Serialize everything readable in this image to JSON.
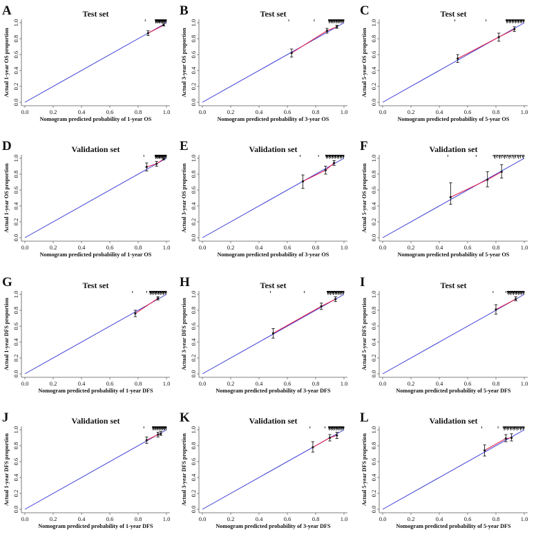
{
  "figure": {
    "axis_ticks": [
      "0.0",
      "0.2",
      "0.4",
      "0.6",
      "0.8",
      "1.0"
    ],
    "colors": {
      "ideal_line": "#3b3bd6",
      "calibration_line": "#e0204f",
      "points": "#1a1a1a",
      "error_bars": "#1a1a1a",
      "axes": "#555555"
    }
  },
  "chart_data": [
    {
      "type": "scatter",
      "panel": "A",
      "title": "Test set",
      "xlabel": "Nomogram predicted probability of 1-year OS",
      "ylabel": "Actual 1-year OS proportion",
      "xlim": [
        0,
        1
      ],
      "ylim": [
        0,
        1
      ],
      "points": [
        {
          "x": 0.87,
          "y": 0.87,
          "lo": 0.84,
          "hi": 0.9
        },
        {
          "x": 0.98,
          "y": 0.97,
          "lo": 0.96,
          "hi": 0.99
        }
      ]
    },
    {
      "type": "scatter",
      "panel": "B",
      "title": "Test set",
      "xlabel": "Nomogram predicted probability of 3-year OS",
      "ylabel": "Actual 3-year OS proportion",
      "xlim": [
        0,
        1
      ],
      "ylim": [
        0,
        1
      ],
      "points": [
        {
          "x": 0.63,
          "y": 0.62,
          "lo": 0.57,
          "hi": 0.67
        },
        {
          "x": 0.88,
          "y": 0.9,
          "lo": 0.87,
          "hi": 0.93
        },
        {
          "x": 0.95,
          "y": 0.95,
          "lo": 0.93,
          "hi": 0.97
        }
      ]
    },
    {
      "type": "scatter",
      "panel": "C",
      "title": "Test set",
      "xlabel": "Nomogram predicted probability of 5-year OS",
      "ylabel": "Actual 5-year OS proportion",
      "xlim": [
        0,
        1
      ],
      "ylim": [
        0,
        1
      ],
      "points": [
        {
          "x": 0.53,
          "y": 0.55,
          "lo": 0.5,
          "hi": 0.6
        },
        {
          "x": 0.82,
          "y": 0.82,
          "lo": 0.77,
          "hi": 0.87
        },
        {
          "x": 0.93,
          "y": 0.92,
          "lo": 0.89,
          "hi": 0.95
        }
      ]
    },
    {
      "type": "scatter",
      "panel": "D",
      "title": "Validation set",
      "xlabel": "Nomogram predicted probability of 1-year OS",
      "ylabel": "Actual 1-year OS proportion",
      "xlim": [
        0,
        1
      ],
      "ylim": [
        0,
        1
      ],
      "points": [
        {
          "x": 0.86,
          "y": 0.89,
          "lo": 0.84,
          "hi": 0.94
        },
        {
          "x": 0.93,
          "y": 0.93,
          "lo": 0.9,
          "hi": 0.96
        },
        {
          "x": 0.98,
          "y": 0.99,
          "lo": 0.98,
          "hi": 1.0
        }
      ]
    },
    {
      "type": "scatter",
      "panel": "E",
      "title": "Validation set",
      "xlabel": "Nomogram predicted probability of 3-year OS",
      "ylabel": "Actual 3-year OS proportion",
      "xlim": [
        0,
        1
      ],
      "ylim": [
        0,
        1
      ],
      "points": [
        {
          "x": 0.71,
          "y": 0.71,
          "lo": 0.62,
          "hi": 0.79
        },
        {
          "x": 0.87,
          "y": 0.85,
          "lo": 0.8,
          "hi": 0.9
        },
        {
          "x": 0.93,
          "y": 0.94,
          "lo": 0.91,
          "hi": 0.97
        }
      ]
    },
    {
      "type": "scatter",
      "panel": "F",
      "title": "Validation set",
      "xlabel": "Nomogram predicted probability of 5-year OS",
      "ylabel": "Actual 5-year OS proportion",
      "xlim": [
        0,
        1
      ],
      "ylim": [
        0,
        1
      ],
      "points": [
        {
          "x": 0.48,
          "y": 0.51,
          "lo": 0.42,
          "hi": 0.69
        },
        {
          "x": 0.74,
          "y": 0.73,
          "lo": 0.64,
          "hi": 0.83
        },
        {
          "x": 0.84,
          "y": 0.83,
          "lo": 0.75,
          "hi": 0.92
        }
      ]
    },
    {
      "type": "scatter",
      "panel": "G",
      "title": "Test set",
      "xlabel": "Nomogram predicted probability of 1-year DFS",
      "ylabel": "Actual 1-year DFS proportion",
      "xlim": [
        0,
        1
      ],
      "ylim": [
        0,
        1
      ],
      "points": [
        {
          "x": 0.78,
          "y": 0.76,
          "lo": 0.72,
          "hi": 0.8
        },
        {
          "x": 0.94,
          "y": 0.95,
          "lo": 0.93,
          "hi": 0.97
        }
      ]
    },
    {
      "type": "scatter",
      "panel": "H",
      "title": "Test set",
      "xlabel": "Nomogram predicted probability of 3-year DFS",
      "ylabel": "Actual 3-year DFS proportion",
      "xlim": [
        0,
        1
      ],
      "ylim": [
        0,
        1
      ],
      "points": [
        {
          "x": 0.5,
          "y": 0.51,
          "lo": 0.45,
          "hi": 0.57
        },
        {
          "x": 0.84,
          "y": 0.85,
          "lo": 0.81,
          "hi": 0.89
        },
        {
          "x": 0.94,
          "y": 0.94,
          "lo": 0.91,
          "hi": 0.97
        }
      ]
    },
    {
      "type": "scatter",
      "panel": "I",
      "title": "Test set",
      "xlabel": "Nomogram predicted probability of 5-year DFS",
      "ylabel": "Actual 5-year DFS proportion",
      "xlim": [
        0,
        1
      ],
      "ylim": [
        0,
        1
      ],
      "points": [
        {
          "x": 0.8,
          "y": 0.81,
          "lo": 0.75,
          "hi": 0.87
        },
        {
          "x": 0.94,
          "y": 0.94,
          "lo": 0.92,
          "hi": 0.97
        }
      ]
    },
    {
      "type": "scatter",
      "panel": "J",
      "title": "Validation set",
      "xlabel": "Nomogram predicted probability of 1-year DFS",
      "ylabel": "Actual 1-year DFS proportion",
      "xlim": [
        0,
        1
      ],
      "ylim": [
        0,
        1
      ],
      "points": [
        {
          "x": 0.86,
          "y": 0.87,
          "lo": 0.83,
          "hi": 0.91
        },
        {
          "x": 0.94,
          "y": 0.94,
          "lo": 0.91,
          "hi": 0.97
        },
        {
          "x": 0.96,
          "y": 0.95,
          "lo": 0.93,
          "hi": 0.98
        }
      ]
    },
    {
      "type": "scatter",
      "panel": "K",
      "title": "Validation set",
      "xlabel": "Nomogram predicted probability of 3-year DFS",
      "ylabel": "Actual 3-year DFS proportion",
      "xlim": [
        0,
        1
      ],
      "ylim": [
        0,
        1
      ],
      "points": [
        {
          "x": 0.78,
          "y": 0.78,
          "lo": 0.72,
          "hi": 0.85
        },
        {
          "x": 0.9,
          "y": 0.9,
          "lo": 0.86,
          "hi": 0.94
        },
        {
          "x": 0.95,
          "y": 0.93,
          "lo": 0.89,
          "hi": 0.97
        }
      ]
    },
    {
      "type": "scatter",
      "panel": "L",
      "title": "Validation set",
      "xlabel": "Nomogram predicted probability of 5-year DFS",
      "ylabel": "Actual 5-year DFS proportion",
      "xlim": [
        0,
        1
      ],
      "ylim": [
        0,
        1
      ],
      "points": [
        {
          "x": 0.72,
          "y": 0.74,
          "lo": 0.67,
          "hi": 0.81
        },
        {
          "x": 0.87,
          "y": 0.89,
          "lo": 0.85,
          "hi": 0.94
        },
        {
          "x": 0.91,
          "y": 0.9,
          "lo": 0.86,
          "hi": 0.95
        }
      ]
    }
  ]
}
